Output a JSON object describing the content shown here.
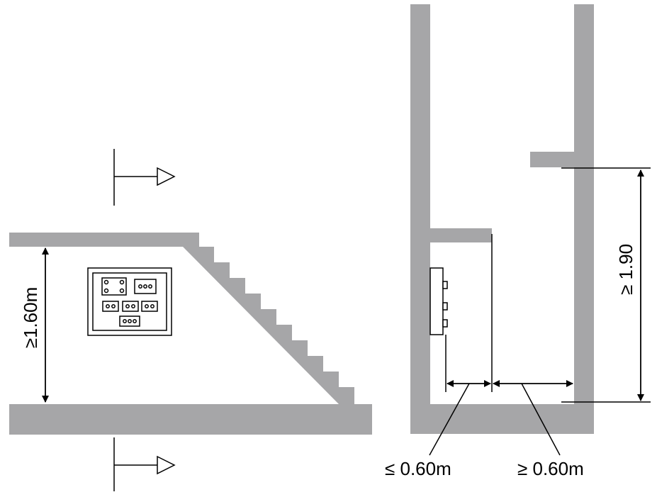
{
  "labels": {
    "left_height": "≥1.60m",
    "right_height": "≥ 1.90",
    "depth_max": "≤ 0.60m",
    "clear_min": "≥ 0.60m"
  },
  "colors": {
    "structure": "#a6a6a8",
    "line": "#000000",
    "background": "#ffffff"
  }
}
